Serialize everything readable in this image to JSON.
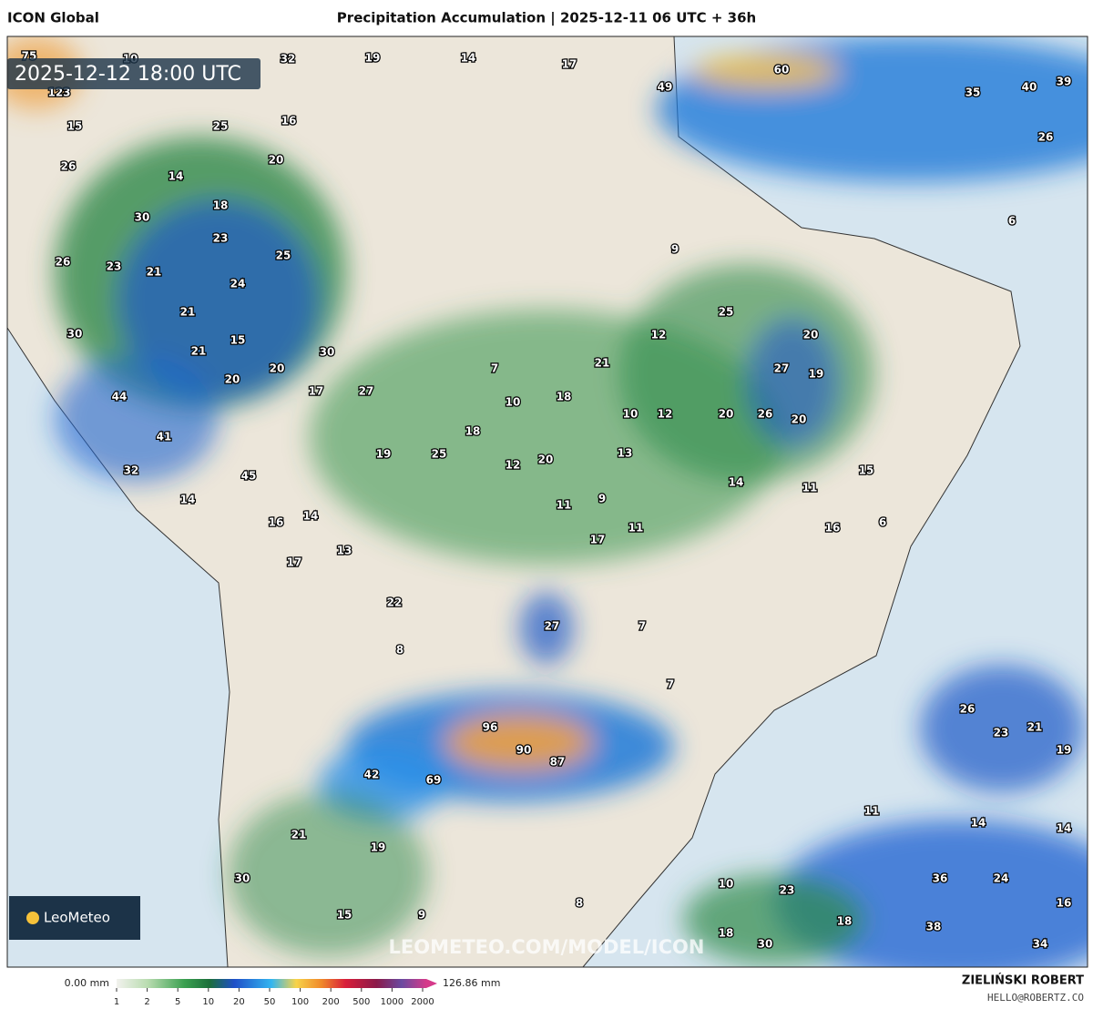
{
  "header": {
    "model": "ICON Global",
    "title": "Precipitation Accumulation | 2025-12-11 06 UTC + 36h"
  },
  "map": {
    "timestamp": "2025-12-12 18:00 UTC",
    "watermark": "LEOMETEO.COM/MODEL/ICON",
    "logo": "LeoMeteo",
    "labels": [
      75,
      10,
      32,
      19,
      14,
      17,
      49,
      60,
      35,
      40,
      39,
      123,
      15,
      16,
      25,
      26,
      20,
      26,
      14,
      18,
      30,
      23,
      6,
      9,
      26,
      23,
      21,
      25,
      24,
      25,
      21,
      12,
      30,
      15,
      30,
      20,
      21,
      21,
      27,
      19,
      20,
      20,
      7,
      17,
      27,
      18,
      10,
      44,
      10,
      12,
      20,
      26,
      20,
      18,
      41,
      19,
      25,
      20,
      13,
      12,
      32,
      15,
      45,
      14,
      11,
      14,
      9,
      11,
      16,
      14,
      6,
      16,
      11,
      17,
      13,
      17,
      22,
      27,
      7,
      8,
      7,
      26,
      23,
      21,
      96,
      90,
      87,
      19,
      42,
      69,
      11,
      14,
      14,
      21,
      19,
      30,
      10,
      23,
      36,
      24,
      16,
      8,
      15,
      9,
      18,
      38,
      18,
      30,
      34
    ]
  },
  "legend": {
    "min_label": "0.00 mm",
    "max_label": "126.86 mm",
    "ticks": [
      1,
      2,
      5,
      10,
      20,
      50,
      100,
      200,
      500,
      1000,
      2000
    ]
  },
  "footer": {
    "author": "ZIELIŃSKI ROBERT",
    "email": "HELLO@ROBERTZ.CO"
  }
}
